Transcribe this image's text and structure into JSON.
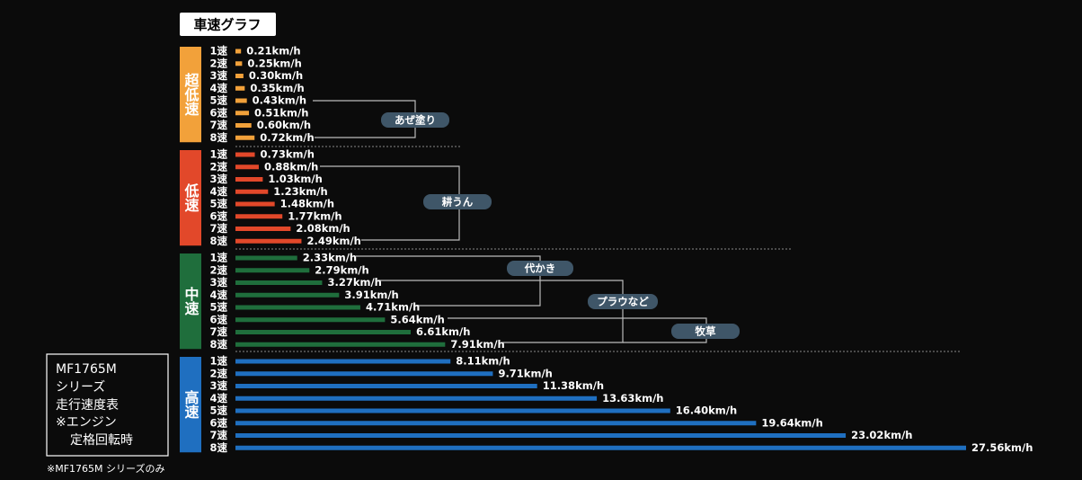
{
  "chart_data": {
    "type": "bar",
    "title": "車速グラフ",
    "groups": [
      {
        "name": "超低速",
        "color": "#f2a13a",
        "categories": [
          "1速",
          "2速",
          "3速",
          "4速",
          "5速",
          "6速",
          "7速",
          "8速"
        ],
        "values": [
          0.21,
          0.25,
          0.3,
          0.35,
          0.43,
          0.51,
          0.6,
          0.72
        ],
        "value_labels": [
          "0.21km/h",
          "0.25km/h",
          "0.30km/h",
          "0.35km/h",
          "0.43km/h",
          "0.51km/h",
          "0.60km/h",
          "0.72km/h"
        ]
      },
      {
        "name": "低速",
        "color": "#e2482a",
        "categories": [
          "1速",
          "2速",
          "3速",
          "4速",
          "5速",
          "6速",
          "7速",
          "8速"
        ],
        "values": [
          0.73,
          0.88,
          1.03,
          1.23,
          1.48,
          1.77,
          2.08,
          2.49
        ],
        "value_labels": [
          "0.73km/h",
          "0.88km/h",
          "1.03km/h",
          "1.23km/h",
          "1.48km/h",
          "1.77km/h",
          "2.08km/h",
          "2.49km/h"
        ]
      },
      {
        "name": "中速",
        "color": "#1f6e3c",
        "categories": [
          "1速",
          "2速",
          "3速",
          "4速",
          "5速",
          "6速",
          "7速",
          "8速"
        ],
        "values": [
          2.33,
          2.79,
          3.27,
          3.91,
          4.71,
          5.64,
          6.61,
          7.91
        ],
        "value_labels": [
          "2.33km/h",
          "2.79km/h",
          "3.27km/h",
          "3.91km/h",
          "4.71km/h",
          "5.64km/h",
          "6.61km/h",
          "7.91km/h"
        ]
      },
      {
        "name": "高速",
        "color": "#1f6fc0",
        "categories": [
          "1速",
          "2速",
          "3速",
          "4速",
          "5速",
          "6速",
          "7速",
          "8速"
        ],
        "values": [
          8.11,
          9.71,
          11.38,
          13.63,
          16.4,
          19.64,
          23.02,
          27.56
        ],
        "value_labels": [
          "8.11km/h",
          "9.71km/h",
          "11.38km/h",
          "13.63km/h",
          "16.40km/h",
          "19.64km/h",
          "23.02km/h",
          "27.56km/h"
        ]
      }
    ],
    "annotations": [
      "あぜ塗り",
      "耕うん",
      "代かき",
      "プラウなど",
      "牧草"
    ],
    "info_box": [
      "MF1765M",
      "シリーズ",
      "走行速度表",
      "※エンジン",
      "定格回転時"
    ],
    "footnote": "※MF1765M シリーズのみ"
  }
}
